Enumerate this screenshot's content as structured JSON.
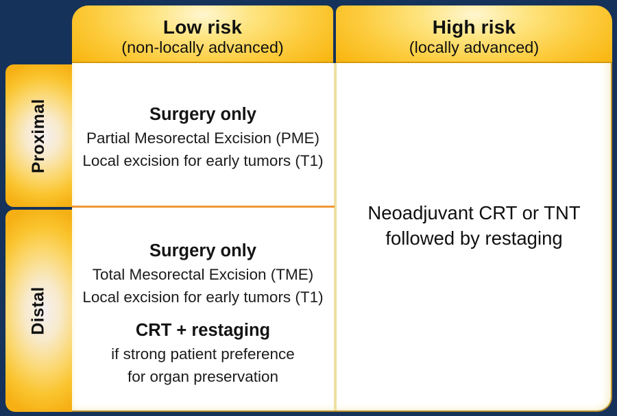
{
  "colors": {
    "background_navy": "#15325B",
    "header_gold": "#F9B815",
    "header_light_center": "#FFF6D0",
    "row_header_center": "#F5F0F3",
    "cell_background": "#FFFFFF",
    "column_divider_line": "#EFE0A0",
    "row_divider_line": "#EE9733",
    "body_border_gold": "#C2982C",
    "text_dark": "#101010"
  },
  "columns": [
    {
      "id": "low-risk",
      "title": "Low risk",
      "subtitle": "(non-locally advanced)"
    },
    {
      "id": "high-risk",
      "title": "High risk",
      "subtitle": "(locally advanced)"
    }
  ],
  "rows": [
    {
      "id": "proximal",
      "label": "Proximal"
    },
    {
      "id": "distal",
      "label": "Distal"
    }
  ],
  "cells": {
    "proximal_low_risk": {
      "heading": "Surgery only",
      "lines": [
        "Partial Mesorectal Excision (PME)",
        "Local excision for early tumors (T1)"
      ]
    },
    "distal_low_risk": {
      "heading": "Surgery only",
      "lines": [
        "Total Mesorectal Excision (TME)",
        "Local excision for early tumors (T1)"
      ],
      "secondary_heading": "CRT + restaging",
      "secondary_lines": [
        "if strong patient preference",
        "for organ preservation"
      ]
    },
    "high_risk": {
      "lines": [
        "Neoadjuvant CRT or TNT",
        "followed by restaging"
      ]
    }
  }
}
